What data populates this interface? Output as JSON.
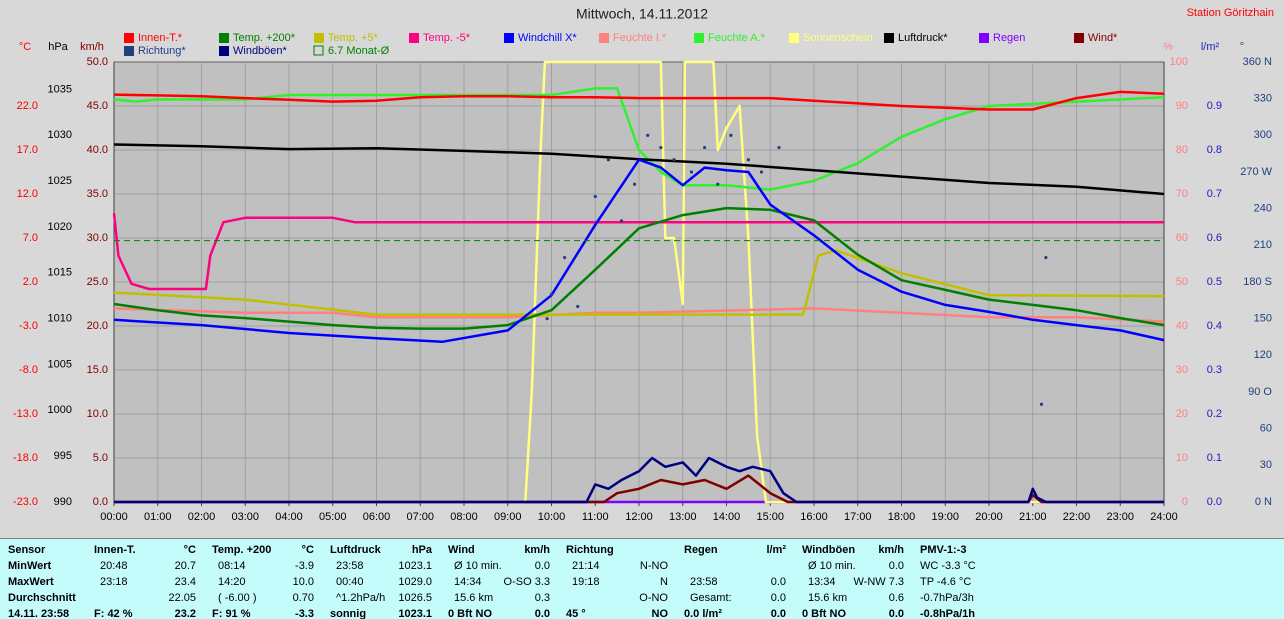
{
  "chart_data": {
    "type": "line",
    "title": "Mittwoch, 14.11.2012",
    "station": "Station Göritzhain",
    "xlim": [
      0,
      24
    ],
    "xticks": [
      {
        "value": 0,
        "label": "00:00"
      },
      {
        "value": 1,
        "label": "01:00"
      },
      {
        "value": 2,
        "label": "02:00"
      },
      {
        "value": 3,
        "label": "03:00"
      },
      {
        "value": 4,
        "label": "04:00"
      },
      {
        "value": 5,
        "label": "05:00"
      },
      {
        "value": 6,
        "label": "06:00"
      },
      {
        "value": 7,
        "label": "07:00"
      },
      {
        "value": 8,
        "label": "08:00"
      },
      {
        "value": 9,
        "label": "09:00"
      },
      {
        "value": 10,
        "label": "10:00"
      },
      {
        "value": 11,
        "label": "11:00"
      },
      {
        "value": 12,
        "label": "12:00"
      },
      {
        "value": 13,
        "label": "13:00"
      },
      {
        "value": 14,
        "label": "14:00"
      },
      {
        "value": 15,
        "label": "15:00"
      },
      {
        "value": 16,
        "label": "16:00"
      },
      {
        "value": 17,
        "label": "17:00"
      },
      {
        "value": 18,
        "label": "18:00"
      },
      {
        "value": 19,
        "label": "19:00"
      },
      {
        "value": 20,
        "label": "20:00"
      },
      {
        "value": 21,
        "label": "21:00"
      },
      {
        "value": 22,
        "label": "22:00"
      },
      {
        "value": 23,
        "label": "23:00"
      },
      {
        "value": 24,
        "label": "24:00"
      }
    ],
    "grid": true,
    "axes": {
      "temp": {
        "label": "°C",
        "color": "#ff0000",
        "ylim": [
          -23,
          27
        ],
        "yticks": [
          {
            "value": -23,
            "label": "-23.0"
          },
          {
            "value": -18,
            "label": "-18.0"
          },
          {
            "value": -13,
            "label": "-13.0"
          },
          {
            "value": -8,
            "label": "-8.0"
          },
          {
            "value": -3,
            "label": "-3.0"
          },
          {
            "value": 2,
            "label": "2.0"
          },
          {
            "value": 7,
            "label": "7.0"
          },
          {
            "value": 12,
            "label": "12.0"
          },
          {
            "value": 17,
            "label": "17.0"
          },
          {
            "value": 22,
            "label": "22.0"
          }
        ]
      },
      "hpa": {
        "label": "hPa",
        "color": "#000000",
        "ylim": [
          990,
          1038
        ],
        "yticks": [
          990,
          995,
          1000,
          1005,
          1010,
          1015,
          1020,
          1025,
          1030,
          1035
        ]
      },
      "kmh": {
        "label": "km/h",
        "color": "#800000",
        "ylim": [
          0,
          50
        ],
        "yticks": [
          {
            "value": 0,
            "label": "0.0"
          },
          {
            "value": 5,
            "label": "5.0"
          },
          {
            "value": 10,
            "label": "10.0"
          },
          {
            "value": 15,
            "label": "15.0"
          },
          {
            "value": 20,
            "label": "20.0"
          },
          {
            "value": 25,
            "label": "25.0"
          },
          {
            "value": 30,
            "label": "30.0"
          },
          {
            "value": 35,
            "label": "35.0"
          },
          {
            "value": 40,
            "label": "40.0"
          },
          {
            "value": 45,
            "label": "45.0"
          },
          {
            "value": 50,
            "label": "50.0"
          }
        ]
      },
      "pct": {
        "label": "%",
        "color": "#ff8080",
        "ylim": [
          0,
          100
        ],
        "yticks": [
          0,
          10,
          20,
          30,
          40,
          50,
          60,
          70,
          80,
          90,
          100
        ]
      },
      "lm2": {
        "label": "l/m²",
        "color": "#2020c0",
        "ylim": [
          0,
          1
        ],
        "yticks": [
          {
            "value": 0,
            "label": "0.0"
          },
          0.1,
          0.2,
          0.3,
          0.4,
          0.5,
          0.6,
          0.7,
          0.8,
          0.9
        ]
      },
      "deg": {
        "label": "°",
        "color": "#204080",
        "ylim": [
          0,
          360
        ],
        "yticks": [
          {
            "value": 0,
            "label": "0 N"
          },
          30,
          60,
          {
            "value": 90,
            "label": "90 O"
          },
          120,
          150,
          {
            "value": 180,
            "label": "180 S"
          },
          210,
          240,
          {
            "value": 270,
            "label": "270 W"
          },
          300,
          330,
          {
            "value": 360,
            "label": "360 N"
          }
        ]
      }
    },
    "series": [
      {
        "name": "Innen-T.*",
        "type": "line",
        "axis": "temp",
        "color": "#ff0000",
        "x": [
          0,
          1,
          2,
          3,
          4,
          5,
          6,
          7,
          8,
          9,
          10,
          11,
          12,
          13,
          14,
          15,
          16,
          17,
          18,
          19,
          20,
          21,
          22,
          23,
          24
        ],
        "values": [
          23.3,
          23.2,
          23.1,
          22.9,
          22.7,
          22.5,
          22.6,
          23.0,
          23.1,
          23.1,
          23.0,
          23.0,
          22.9,
          22.9,
          22.9,
          22.9,
          22.6,
          22.3,
          22.0,
          21.8,
          21.6,
          21.6,
          22.9,
          23.6,
          23.4
        ]
      },
      {
        "name": "Temp. +200*",
        "type": "line",
        "axis": "temp",
        "color": "#008000",
        "x": [
          0,
          1,
          2,
          3,
          4,
          5,
          6,
          7,
          8,
          9,
          10,
          11,
          12,
          13,
          14,
          15,
          16,
          17,
          18,
          19,
          20,
          21,
          22,
          23,
          24
        ],
        "values": [
          -0.5,
          -1.2,
          -1.8,
          -2.1,
          -2.5,
          -2.9,
          -3.2,
          -3.3,
          -3.3,
          -2.9,
          -1.2,
          3.4,
          8.1,
          9.6,
          10.4,
          10.2,
          9.0,
          5.1,
          2.2,
          1.1,
          0.0,
          -0.6,
          -1.2,
          -2.1,
          -2.9
        ]
      },
      {
        "name": "Temp. +5*",
        "type": "line",
        "axis": "temp",
        "color": "#c0c000",
        "x": [
          0,
          3,
          6,
          9,
          12,
          15,
          15.75,
          16.1,
          16.5,
          18,
          20,
          24
        ],
        "values": [
          0.8,
          0.0,
          -1.7,
          -1.7,
          -1.7,
          -1.7,
          -1.7,
          5.0,
          5.6,
          3.0,
          0.5,
          0.4
        ]
      },
      {
        "name": "Temp. -5*",
        "type": "line",
        "axis": "temp",
        "color": "#ff0080",
        "x": [
          0,
          0.1,
          0.4,
          0.8,
          2.1,
          2.2,
          2.5,
          3,
          5,
          5.5,
          24
        ],
        "values": [
          9.8,
          5.0,
          1.8,
          1.2,
          1.2,
          5.0,
          8.8,
          9.3,
          9.3,
          8.8,
          8.8
        ]
      },
      {
        "name": "Windchill X*",
        "type": "line",
        "axis": "temp",
        "color": "#0000ff",
        "x": [
          0,
          2,
          4,
          6,
          7.5,
          9,
          10,
          11,
          12,
          12.5,
          13,
          13.5,
          14,
          14.5,
          15,
          16,
          17,
          18,
          19,
          20,
          21,
          22,
          23,
          24
        ],
        "values": [
          -2.3,
          -2.9,
          -3.8,
          -4.4,
          -4.8,
          -3.5,
          0.5,
          8.5,
          15.9,
          15.0,
          13.0,
          15.0,
          14.7,
          14.5,
          10.8,
          7.3,
          3.4,
          0.9,
          -0.6,
          -1.4,
          -2.3,
          -2.9,
          -3.5,
          -4.6
        ]
      },
      {
        "name": "Feuchte I.*",
        "type": "line",
        "axis": "pct",
        "color": "#ff8080",
        "x": [
          0,
          3,
          5,
          6,
          9,
          11,
          12,
          16,
          18,
          20,
          22,
          24
        ],
        "values": [
          44,
          43,
          43,
          42,
          42,
          43,
          43,
          44,
          43,
          42,
          42,
          41
        ]
      },
      {
        "name": "Feuchte A.*",
        "type": "line",
        "axis": "pct",
        "color": "#30f030",
        "x": [
          0,
          0.5,
          1,
          3,
          4,
          5,
          8,
          10,
          11,
          11.5,
          12,
          12.5,
          13,
          14,
          15,
          16,
          17,
          18,
          19,
          20,
          22,
          24
        ],
        "values": [
          91.5,
          91,
          91.5,
          91.5,
          92.5,
          92.5,
          92.5,
          92.5,
          94,
          94,
          80,
          75,
          72,
          72,
          71,
          73,
          77,
          83,
          87,
          90,
          91,
          92
        ]
      },
      {
        "name": "Sonnenschein",
        "type": "line",
        "axis": "pct",
        "color": "#ffff80",
        "x": [
          0,
          9.4,
          9.55,
          9.75,
          9.85,
          12.5,
          12.6,
          12.8,
          13.0,
          13.05,
          13.1,
          13.7,
          13.8,
          14.0,
          14.3,
          14.5,
          14.7,
          14.9,
          24
        ],
        "values": [
          0,
          0,
          25,
          80,
          100,
          100,
          60,
          60,
          45,
          100,
          100,
          100,
          80,
          85,
          90,
          60,
          15,
          0,
          0
        ]
      },
      {
        "name": "Luftdruck*",
        "type": "line",
        "axis": "hpa",
        "color": "#000000",
        "x": [
          0,
          2,
          4,
          6,
          8,
          10,
          12,
          14,
          16,
          18,
          20,
          22,
          24
        ],
        "values": [
          1029.0,
          1028.8,
          1028.5,
          1028.6,
          1028.3,
          1028.0,
          1027.4,
          1026.9,
          1026.2,
          1025.5,
          1024.8,
          1024.4,
          1023.6
        ]
      },
      {
        "name": "Regen",
        "type": "line",
        "axis": "lm2",
        "color": "#8000ff",
        "x": [
          0,
          24
        ],
        "values": [
          0,
          0
        ]
      },
      {
        "name": "Wind*",
        "type": "line",
        "axis": "kmh",
        "color": "#800000",
        "x": [
          0,
          11.2,
          11.5,
          12,
          12.5,
          13,
          13.5,
          14,
          14.5,
          15,
          15.4,
          20.9,
          21,
          21.2,
          24
        ],
        "values": [
          0,
          0,
          1,
          1.5,
          2.5,
          2,
          2.5,
          1.5,
          3,
          1,
          0,
          0,
          0.8,
          0,
          0
        ]
      },
      {
        "name": "Richtung*",
        "type": "scatter",
        "axis": "deg",
        "color": "#204080",
        "x": [
          9.9,
          10,
          10.3,
          10.6,
          11,
          11.3,
          11.6,
          11.9,
          12.2,
          12.5,
          12.8,
          13.2,
          13.5,
          13.8,
          14.1,
          14.5,
          14.8,
          15.2,
          21.2,
          21.3
        ],
        "values": [
          150,
          170,
          200,
          160,
          250,
          280,
          230,
          260,
          300,
          290,
          280,
          270,
          290,
          260,
          300,
          280,
          270,
          290,
          80,
          200
        ]
      },
      {
        "name": "Windböen*",
        "type": "line",
        "axis": "kmh",
        "color": "#000080",
        "x": [
          0,
          10.8,
          11,
          11.3,
          11.6,
          12,
          12.3,
          12.6,
          13,
          13.3,
          13.6,
          14,
          14.3,
          14.6,
          15,
          15.3,
          15.6,
          20.9,
          21,
          21.1,
          21.3,
          24
        ],
        "values": [
          0,
          0,
          2,
          1.5,
          2.5,
          3.5,
          5,
          4,
          4.5,
          3,
          5,
          4,
          3.5,
          4,
          3.5,
          1,
          0,
          0,
          1.5,
          0.5,
          0,
          0
        ]
      },
      {
        "name": "6.7 Monat-Ø",
        "type": "hline",
        "axis": "temp",
        "color": "#008000",
        "value": 6.7
      }
    ]
  },
  "table": {
    "columns": [
      {
        "header": [
          "Sensor"
        ],
        "rows": [
          [
            "MinWert"
          ],
          [
            "MaxWert"
          ],
          [
            "Durchschnitt"
          ],
          [
            "14.11. 23:58"
          ]
        ]
      },
      {
        "header": [
          "Innen-T.",
          "°C"
        ],
        "rows": [
          [
            "20:48",
            "20.7"
          ],
          [
            "23:18",
            "23.4"
          ],
          [
            null,
            "22.05"
          ],
          [
            "F: 42 %",
            "23.2"
          ]
        ]
      },
      {
        "header": [
          "Temp. +200",
          "°C"
        ],
        "rows": [
          [
            "08:14",
            "-3.9"
          ],
          [
            "14:20",
            "10.0"
          ],
          [
            "( -6.00 )",
            "0.70"
          ],
          [
            "F: 91 %",
            "-3.3"
          ]
        ]
      },
      {
        "header": [
          "Luftdruck",
          "hPa"
        ],
        "rows": [
          [
            "23:58",
            "1023.1"
          ],
          [
            "00:40",
            "1029.0"
          ],
          [
            "^1.2hPa/h",
            "1026.5"
          ],
          [
            "sonnig",
            "1023.1"
          ]
        ]
      },
      {
        "header": [
          "Wind",
          "km/h"
        ],
        "rows": [
          [
            "Ø 10 min.",
            "0.0"
          ],
          [
            "14:34",
            "O-SO 3.3"
          ],
          [
            "15.6 km",
            "0.3"
          ],
          [
            "0 Bft NO",
            "0.0"
          ]
        ]
      },
      {
        "header": [
          "Richtung"
        ],
        "rows": [
          [
            "21:14",
            "N-NO"
          ],
          [
            "19:18",
            "N"
          ],
          [
            null,
            "O-NO"
          ],
          [
            "45 °",
            "NO"
          ]
        ]
      },
      {
        "header": [
          "Regen",
          "l/m²"
        ],
        "rows": [
          [
            null,
            null
          ],
          [
            "23:58",
            "0.0"
          ],
          [
            "Gesamt:",
            "0.0"
          ],
          [
            "0.0 l/m²",
            "0.0"
          ]
        ]
      },
      {
        "header": [
          "Windböen",
          "km/h"
        ],
        "rows": [
          [
            "Ø 10 min.",
            "0.0"
          ],
          [
            "13:34",
            "W-NW 7.3"
          ],
          [
            "15.6 km",
            "0.6"
          ],
          [
            "0 Bft NO",
            "0.0"
          ]
        ]
      },
      {
        "header": [
          "PMV-1:-3"
        ],
        "rows": [
          [
            "WC -3.3 °C"
          ],
          [
            "TP -4.6 °C"
          ],
          [
            "-0.7hPa/3h"
          ],
          [
            "-0.8hPa/1h"
          ]
        ]
      }
    ]
  }
}
